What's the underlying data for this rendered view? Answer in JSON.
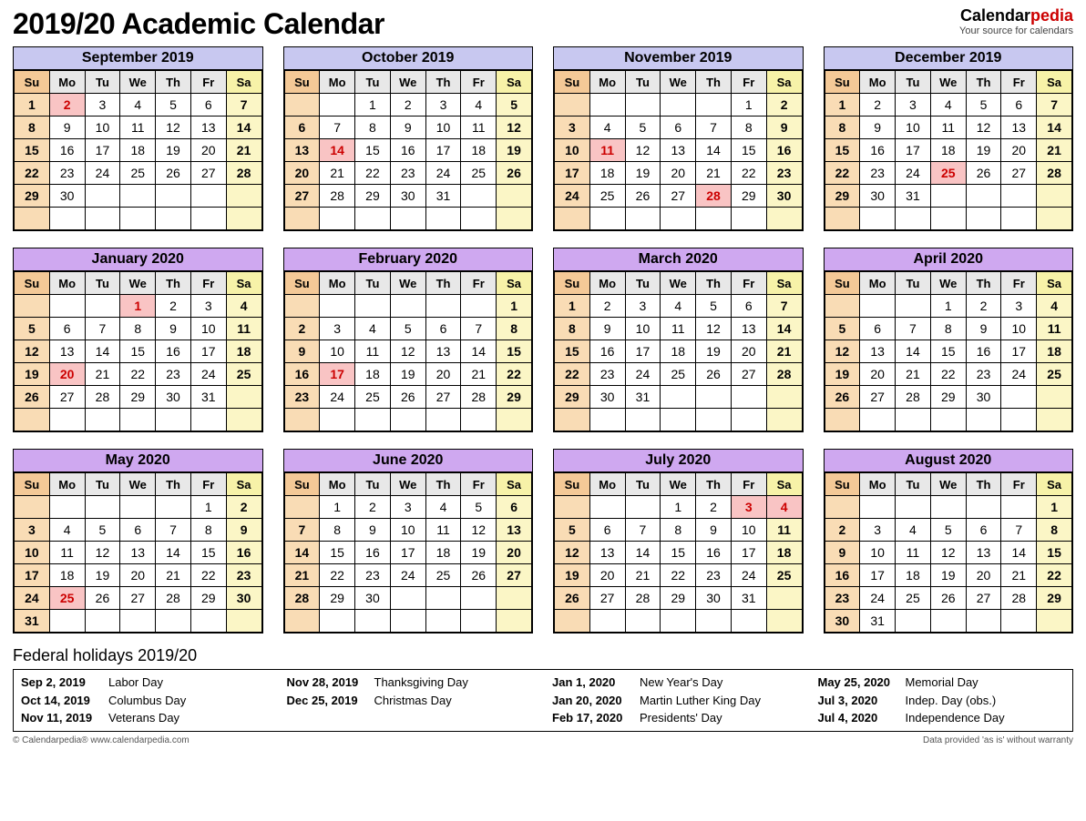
{
  "title": "2019/20 Academic Calendar",
  "logo": {
    "textA": "Calendar",
    "textB": "pedia",
    "tagline": "Your source for calendars"
  },
  "colors": {
    "header2019": "#c8c8f0",
    "header2020": "#cfa8f0",
    "sunHeader": "#f4c997",
    "satHeader": "#f7f2a8",
    "sunCell": "#f9dcb5",
    "satCell": "#fbf6c6",
    "holidayCell": "#f9c4c4",
    "holidayText": "#cc0000",
    "weekdayHeader": "#e8e8e8"
  },
  "dayHeaders": [
    "Su",
    "Mo",
    "Tu",
    "We",
    "Th",
    "Fr",
    "Sa"
  ],
  "months": [
    {
      "name": "September 2019",
      "hdr": "header2019",
      "start": 0,
      "days": 30,
      "holidays": [
        2
      ]
    },
    {
      "name": "October 2019",
      "hdr": "header2019",
      "start": 2,
      "days": 31,
      "holidays": [
        14
      ]
    },
    {
      "name": "November 2019",
      "hdr": "header2019",
      "start": 5,
      "days": 30,
      "holidays": [
        11,
        28
      ]
    },
    {
      "name": "December 2019",
      "hdr": "header2019",
      "start": 0,
      "days": 31,
      "holidays": [
        25
      ]
    },
    {
      "name": "January 2020",
      "hdr": "header2020",
      "start": 3,
      "days": 31,
      "holidays": [
        1,
        20
      ]
    },
    {
      "name": "February 2020",
      "hdr": "header2020",
      "start": 6,
      "days": 29,
      "holidays": [
        17
      ]
    },
    {
      "name": "March 2020",
      "hdr": "header2020",
      "start": 0,
      "days": 31,
      "holidays": []
    },
    {
      "name": "April 2020",
      "hdr": "header2020",
      "start": 3,
      "days": 30,
      "holidays": []
    },
    {
      "name": "May 2020",
      "hdr": "header2020",
      "start": 5,
      "days": 31,
      "holidays": [
        25
      ]
    },
    {
      "name": "June 2020",
      "hdr": "header2020",
      "start": 1,
      "days": 30,
      "holidays": []
    },
    {
      "name": "July 2020",
      "hdr": "header2020",
      "start": 3,
      "days": 31,
      "holidays": [
        3,
        4
      ]
    },
    {
      "name": "August 2020",
      "hdr": "header2020",
      "start": 6,
      "days": 31,
      "holidays": []
    }
  ],
  "weeksShown": 6,
  "holidays": {
    "title": "Federal holidays 2019/20",
    "columns": [
      [
        {
          "d": "Sep 2, 2019",
          "n": "Labor Day"
        },
        {
          "d": "Oct 14, 2019",
          "n": "Columbus Day"
        },
        {
          "d": "Nov 11, 2019",
          "n": "Veterans Day"
        }
      ],
      [
        {
          "d": "Nov 28, 2019",
          "n": "Thanksgiving Day"
        },
        {
          "d": "Dec 25, 2019",
          "n": "Christmas Day"
        }
      ],
      [
        {
          "d": "Jan 1, 2020",
          "n": "New Year's Day"
        },
        {
          "d": "Jan 20, 2020",
          "n": "Martin Luther King Day"
        },
        {
          "d": "Feb 17, 2020",
          "n": "Presidents' Day"
        }
      ],
      [
        {
          "d": "May 25, 2020",
          "n": "Memorial Day"
        },
        {
          "d": "Jul 3, 2020",
          "n": "Indep. Day (obs.)"
        },
        {
          "d": "Jul 4, 2020",
          "n": "Independence Day"
        }
      ]
    ]
  },
  "footer": {
    "left": "© Calendarpedia®   www.calendarpedia.com",
    "right": "Data provided 'as is' without warranty"
  }
}
